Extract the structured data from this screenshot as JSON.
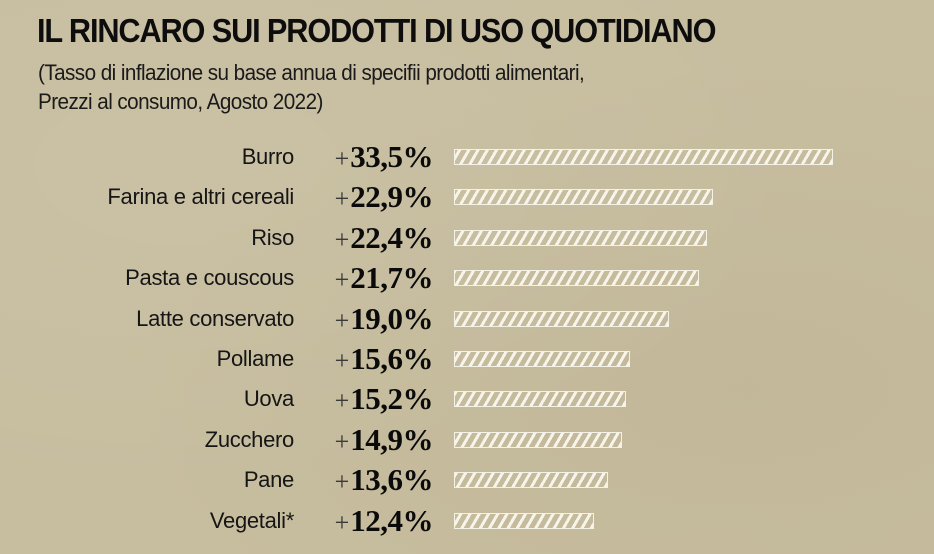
{
  "header": {
    "title": "IL RINCARO SUI PRODOTTI DI USO QUOTIDIANO",
    "subtitle_line1": "(Tasso di inflazione su base annua di specifii prodotti alimentari,",
    "subtitle_line2": "Prezzi al consumo, Agosto 2022)"
  },
  "colors": {
    "background": "#c7bd9f",
    "bar_stripe": "#f7f4ea",
    "text": "#111111"
  },
  "rows": [
    {
      "label": "Burro",
      "sign": "+",
      "value": "33,5%",
      "num": 33.5
    },
    {
      "label": "Farina e altri cereali",
      "sign": "+",
      "value": "22,9%",
      "num": 22.9
    },
    {
      "label": "Riso",
      "sign": "+",
      "value": "22,4%",
      "num": 22.4
    },
    {
      "label": "Pasta e couscous",
      "sign": "+",
      "value": "21,7%",
      "num": 21.7
    },
    {
      "label": "Latte conservato",
      "sign": "+",
      "value": "19,0%",
      "num": 19.0
    },
    {
      "label": "Pollame",
      "sign": "+",
      "value": "15,6%",
      "num": 15.6
    },
    {
      "label": "Uova",
      "sign": "+",
      "value": "15,2%",
      "num": 15.2
    },
    {
      "label": "Zucchero",
      "sign": "+",
      "value": "14,9%",
      "num": 14.9
    },
    {
      "label": "Pane",
      "sign": "+",
      "value": "13,6%",
      "num": 13.6
    },
    {
      "label": "Vegetali*",
      "sign": "+",
      "value": "12,4%",
      "num": 12.4
    }
  ],
  "chart_data": {
    "type": "bar",
    "orientation": "horizontal",
    "title": "IL RINCARO SUI PRODOTTI DI USO QUOTIDIANO",
    "subtitle": "(Tasso di inflazione su base annua di specifii prodotti alimentari, Prezzi al consumo, Agosto 2022)",
    "categories": [
      "Burro",
      "Farina e altri cereali",
      "Riso",
      "Pasta e couscous",
      "Latte conservato",
      "Pollame",
      "Uova",
      "Zucchero",
      "Pane",
      "Vegetali*"
    ],
    "values": [
      33.5,
      22.9,
      22.4,
      21.7,
      19.0,
      15.6,
      15.2,
      14.9,
      13.6,
      12.4
    ],
    "value_labels": [
      "+33,5%",
      "+22,9%",
      "+22,4%",
      "+21,7%",
      "+19,0%",
      "+15,6%",
      "+15,2%",
      "+14,9%",
      "+13,6%",
      "+12,4%"
    ],
    "xlabel": "",
    "ylabel": "",
    "unit": "%",
    "grid": false,
    "legend": null,
    "bar_style": "white diagonal hatch with white outline"
  }
}
